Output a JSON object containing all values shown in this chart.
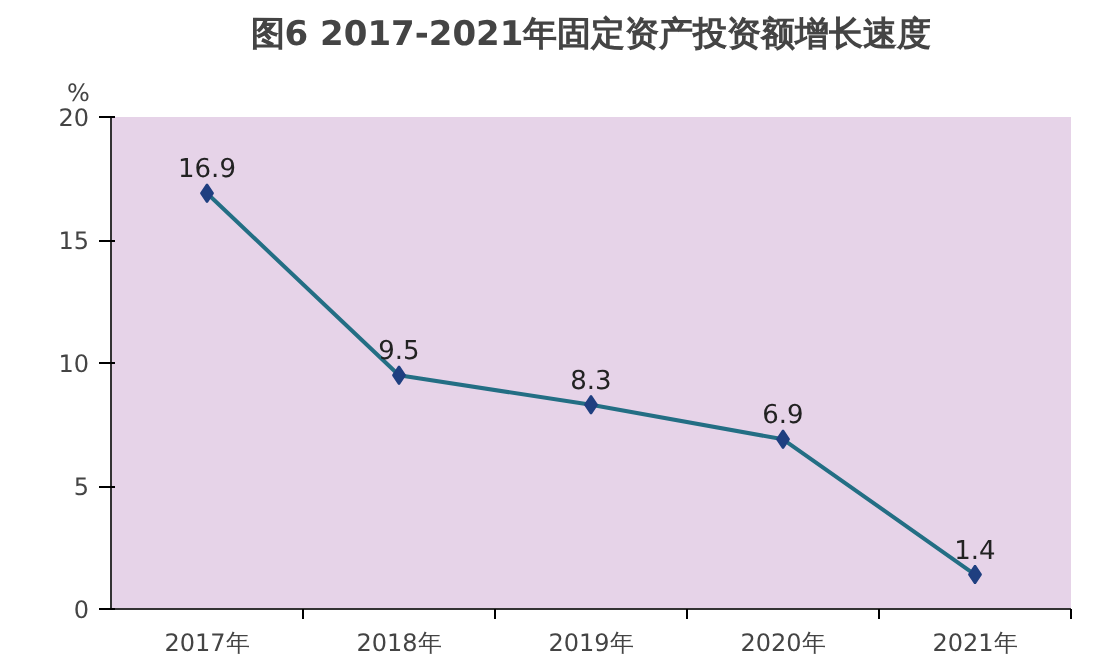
{
  "chart_data": {
    "type": "line",
    "title": "图6 2017-2021年固定资产投资额增长速度",
    "ylabel": "%",
    "categories": [
      "2017年",
      "2018年",
      "2019年",
      "2020年",
      "2021年"
    ],
    "series": [
      {
        "color": "#236e84",
        "values": [
          16.9,
          9.5,
          8.3,
          6.9,
          1.4
        ]
      }
    ],
    "ylim": [
      0,
      20
    ],
    "yticks": [
      0,
      5,
      10,
      15,
      20
    ],
    "grid": false,
    "marker": "diamond",
    "line_style": "solid",
    "data_labels": true
  }
}
